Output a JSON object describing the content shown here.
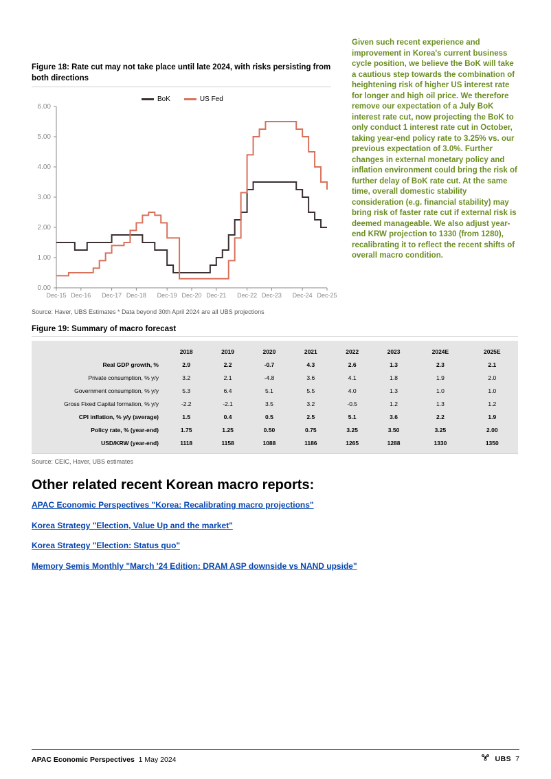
{
  "figure18": {
    "title": "Figure 18: Rate cut may not take place until late 2024, with risks persisting from both directions",
    "source": "Source: Haver, UBS Estimates * Data beyond 30th April 2024 are all UBS projections",
    "chart": {
      "type": "line",
      "ylim": [
        0,
        6
      ],
      "ytick_step": 1.0,
      "background_color": "#ffffff",
      "axis_color": "#888888",
      "axis_label_color": "#888888",
      "axis_label_fontsize": 10,
      "x_categories": [
        "Dec-15",
        "Dec-16",
        "Dec-17",
        "Dec-18",
        "Dec-19",
        "Dec-20",
        "Dec-21",
        "Dec-22",
        "Dec-23",
        "Dec-24",
        "Dec-25"
      ],
      "legend_position": "top-center",
      "legend_fontsize": 10,
      "line_width": 2,
      "series": [
        {
          "name": "BoK",
          "color": "#3b2f2f",
          "values": [
            1.5,
            1.5,
            1.5,
            1.25,
            1.25,
            1.5,
            1.5,
            1.5,
            1.5,
            1.75,
            1.75,
            1.75,
            1.75,
            1.75,
            1.5,
            1.5,
            1.25,
            1.25,
            0.75,
            0.5,
            0.5,
            0.5,
            0.5,
            0.5,
            0.5,
            0.75,
            1.0,
            1.25,
            1.75,
            2.25,
            2.5,
            3.25,
            3.5,
            3.5,
            3.5,
            3.5,
            3.5,
            3.5,
            3.5,
            3.25,
            3.0,
            2.5,
            2.25,
            2.0,
            2.0
          ]
        },
        {
          "name": "US Fed",
          "color": "#d9705a",
          "values": [
            0.4,
            0.4,
            0.5,
            0.5,
            0.5,
            0.5,
            0.65,
            0.9,
            1.15,
            1.4,
            1.4,
            1.5,
            1.9,
            2.15,
            2.4,
            2.5,
            2.4,
            2.15,
            1.65,
            1.65,
            0.3,
            0.3,
            0.3,
            0.3,
            0.3,
            0.3,
            0.3,
            0.3,
            0.9,
            1.65,
            3.15,
            4.4,
            5.0,
            5.25,
            5.5,
            5.5,
            5.5,
            5.5,
            5.5,
            5.25,
            5.0,
            4.5,
            4.0,
            3.5,
            3.25
          ]
        }
      ]
    }
  },
  "sidebar_paragraph": "Given such recent experience and improvement in Korea's current business cycle position, we believe the BoK will take a cautious step towards the combination of heightening risk of higher US interest rate for longer and high oil price. We therefore remove our expectation of a July BoK interest rate cut, now projecting the BoK to only conduct 1 interest rate cut in October, taking year-end policy rate to 3.25% vs. our previous expectation of 3.0%. Further changes in external monetary policy and inflation environment could bring the risk of further delay of BoK rate cut. At the same time, overall domestic stability consideration (e.g. financial stability) may bring risk of faster rate cut if external risk is deemed manageable. We also adjust year-end KRW projection to 1330 (from 1280), recalibrating it to reflect the recent shifts of overall macro condition.",
  "figure19": {
    "title": "Figure 19: Summary of macro forecast",
    "source": "Source: CEIC, Haver, UBS estimates",
    "table": {
      "background_color": "#e5e5e5",
      "header_fontweight": "700",
      "fontsize": 8.5,
      "columns": [
        "",
        "2018",
        "2019",
        "2020",
        "2021",
        "2022",
        "2023",
        "2024E",
        "2025E"
      ],
      "rows": [
        {
          "label": "Real GDP growth, %",
          "bold": true,
          "vals": [
            "2.9",
            "2.2",
            "-0.7",
            "4.3",
            "2.6",
            "1.3",
            "2.3",
            "2.1"
          ]
        },
        {
          "label": "Private consumption, % y/y",
          "bold": false,
          "vals": [
            "3.2",
            "2.1",
            "-4.8",
            "3.6",
            "4.1",
            "1.8",
            "1.9",
            "2.0"
          ]
        },
        {
          "label": "Government consumption, % y/y",
          "bold": false,
          "vals": [
            "5.3",
            "6.4",
            "5.1",
            "5.5",
            "4.0",
            "1.3",
            "1.0",
            "1.0"
          ]
        },
        {
          "label": "Gross Fixed Capital formation, % y/y",
          "bold": false,
          "vals": [
            "-2.2",
            "-2.1",
            "3.5",
            "3.2",
            "-0.5",
            "1.2",
            "1.3",
            "1.2"
          ]
        },
        {
          "label": "CPI inflation, % y/y (average)",
          "bold": true,
          "vals": [
            "1.5",
            "0.4",
            "0.5",
            "2.5",
            "5.1",
            "3.6",
            "2.2",
            "1.9"
          ]
        },
        {
          "label": "Policy rate, % (year-end)",
          "bold": true,
          "vals": [
            "1.75",
            "1.25",
            "0.50",
            "0.75",
            "3.25",
            "3.50",
            "3.25",
            "2.00"
          ]
        },
        {
          "label": "USD/KRW (year-end)",
          "bold": true,
          "vals": [
            "1118",
            "1158",
            "1088",
            "1186",
            "1265",
            "1288",
            "1330",
            "1350"
          ]
        }
      ]
    }
  },
  "section_heading": "Other related recent Korean macro reports:",
  "links": [
    "APAC Economic Perspectives \"Korea: Recalibrating macro projections\"",
    "Korea Strategy \"Election, Value Up and the market\"",
    "Korea Strategy \"Election: Status quo\"",
    "Memory Semis Monthly \"March '24 Edition: DRAM ASP downside vs NAND upside\""
  ],
  "footer": {
    "title_bold": "APAC Economic Perspectives",
    "date": "1 May 2024",
    "brand": "UBS",
    "page": "7"
  }
}
